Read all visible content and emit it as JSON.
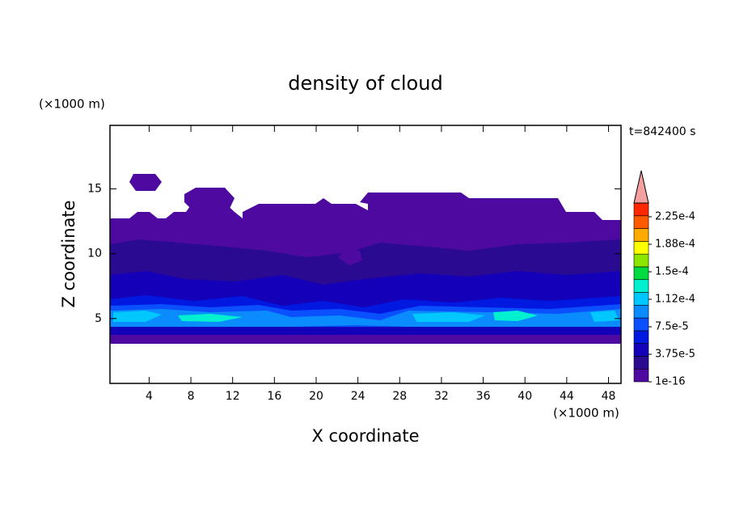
{
  "chart_data": {
    "type": "contour",
    "title": "density of cloud",
    "x_label": "X coordinate",
    "y_label": "Z coordinate",
    "x_unit": "(×1000 m)",
    "y_unit": "(×1000 m)",
    "time_label": "t=842400 s",
    "xlim": [
      0.25,
      49.2
    ],
    "ylim": [
      0,
      19.9
    ],
    "xticks": [
      4,
      8,
      12,
      16,
      20,
      24,
      28,
      32,
      36,
      40,
      44,
      48
    ],
    "yticks": [
      5,
      10,
      15
    ],
    "colorbar": {
      "ticks": [
        {
          "value": 1e-16,
          "label": "1e-16"
        },
        {
          "value": 3.75e-05,
          "label": "3.75e-5"
        },
        {
          "value": 7.5e-05,
          "label": "7.5e-5"
        },
        {
          "value": 0.000112,
          "label": "1.12e-4"
        },
        {
          "value": 0.00015,
          "label": "1.5e-4"
        },
        {
          "value": 0.000188,
          "label": "1.88e-4"
        },
        {
          "value": 0.000225,
          "label": "2.25e-4"
        }
      ],
      "colors": [
        "#4e0aa0",
        "#2a0a90",
        "#1400b8",
        "#0018e0",
        "#0a50ff",
        "#0a8cff",
        "#00c8ff",
        "#00f0d0",
        "#00dc40",
        "#8ce600",
        "#ffff00",
        "#ffaa00",
        "#ff5a00",
        "#ff2800"
      ],
      "extend_color": "#f4a0a0"
    }
  }
}
